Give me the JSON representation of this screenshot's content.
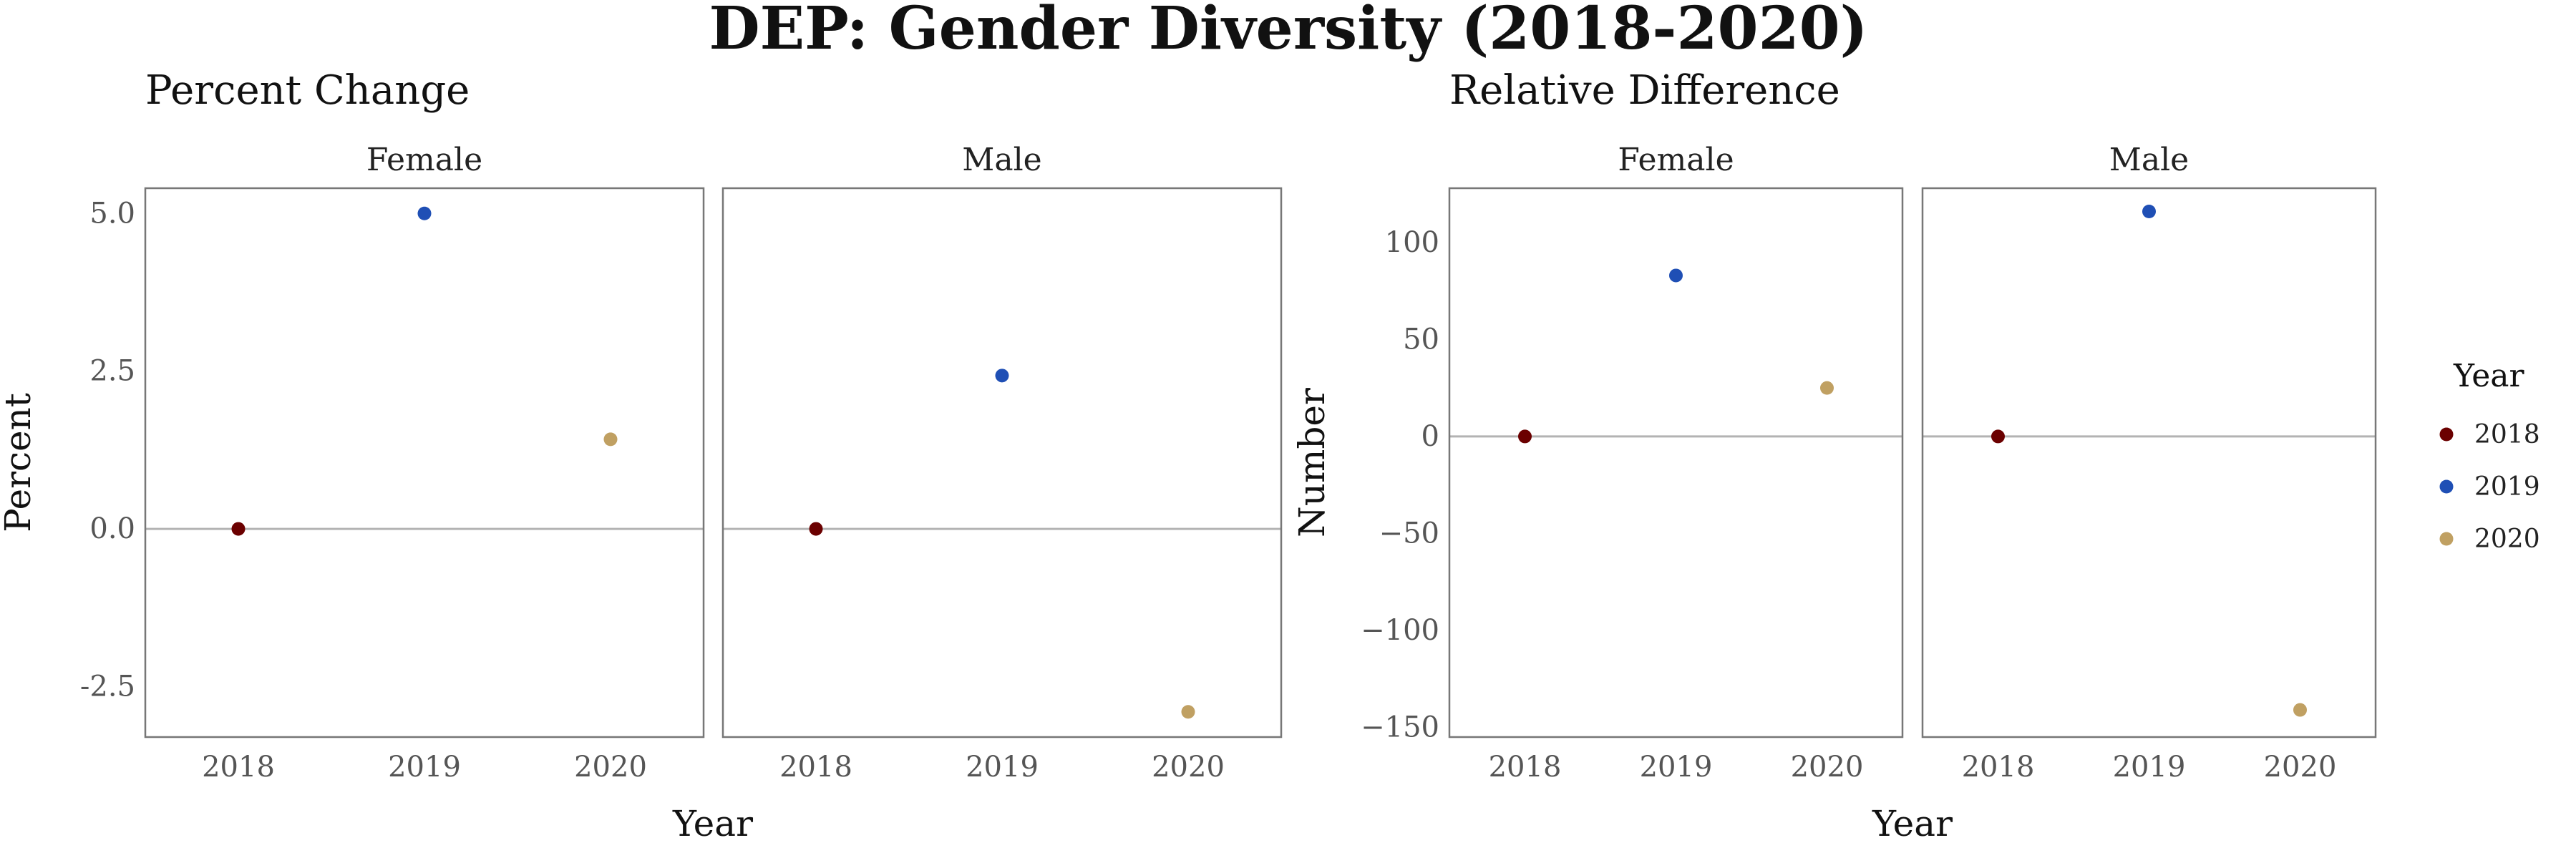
{
  "figure": {
    "title": "DEP: Gender Diversity (2018-2020)"
  },
  "legend": {
    "title": "Year",
    "entries": [
      {
        "label": "2018",
        "color": "#6b0000"
      },
      {
        "label": "2019",
        "color": "#1f4fb5"
      },
      {
        "label": "2020",
        "color": "#c0a062"
      }
    ]
  },
  "chart_data": [
    {
      "type": "scatter",
      "title": "Percent Change",
      "xlabel": "Year",
      "ylabel": "Percent",
      "ylim": [
        -3.3,
        5.4
      ],
      "yticks": [
        -2.5,
        0.0,
        2.5,
        5.0
      ],
      "ytick_labels": [
        "-2.5",
        "0.0",
        "2.5",
        "5.0"
      ],
      "reference_line_y": 0,
      "grid": false,
      "categories": [
        "2018",
        "2019",
        "2020"
      ],
      "facets": [
        {
          "name": "Female",
          "values": [
            0.0,
            5.0,
            1.42
          ]
        },
        {
          "name": "Male",
          "values": [
            0.0,
            2.43,
            -2.9
          ]
        }
      ]
    },
    {
      "type": "scatter",
      "title": "Relative Difference",
      "xlabel": "Year",
      "ylabel": "Number",
      "ylim": [
        -155,
        128
      ],
      "yticks": [
        -150,
        -100,
        -50,
        0,
        50,
        100
      ],
      "ytick_labels": [
        "−150",
        "−100",
        "−50",
        "0",
        "50",
        "100"
      ],
      "reference_line_y": 0,
      "grid": false,
      "categories": [
        "2018",
        "2019",
        "2020"
      ],
      "facets": [
        {
          "name": "Female",
          "values": [
            0,
            83,
            25
          ]
        },
        {
          "name": "Male",
          "values": [
            0,
            116,
            -141
          ]
        }
      ]
    }
  ]
}
